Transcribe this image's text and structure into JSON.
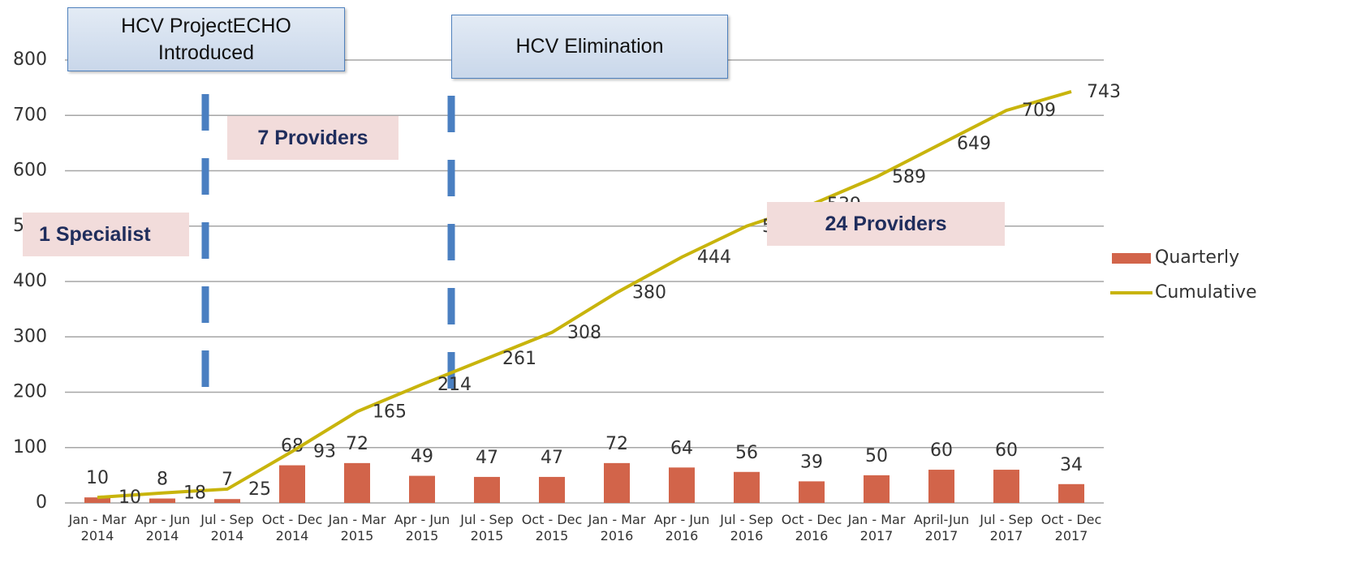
{
  "chart_data": {
    "type": "bar_line",
    "categories": [
      "Jan - Mar 2014",
      "Apr - Jun 2014",
      "Jul - Sep 2014",
      "Oct - Dec 2014",
      "Jan - Mar 2015",
      "Apr - Jun 2015",
      "Jul - Sep 2015",
      "Oct - Dec 2015",
      "Jan - Mar 2016",
      "Apr - Jun 2016",
      "Jul - Sep 2016",
      "Oct - Dec 2016",
      "Jan - Mar 2017",
      "April-Jun 2017",
      "Jul - Sep 2017",
      "Oct - Dec 2017"
    ],
    "series": [
      {
        "name": "Quarterly",
        "type": "bar",
        "color": "#d2644a",
        "values": [
          10,
          8,
          7,
          68,
          72,
          49,
          47,
          47,
          72,
          64,
          56,
          39,
          50,
          60,
          60,
          34
        ]
      },
      {
        "name": "Cumulative",
        "type": "line",
        "color": "#c8b40c",
        "values": [
          10,
          18,
          25,
          93,
          165,
          214,
          261,
          308,
          380,
          444,
          500,
          539,
          589,
          649,
          709,
          743
        ]
      }
    ],
    "ylim": [
      0,
      800
    ],
    "yticks": [
      0,
      100,
      200,
      300,
      400,
      500,
      600,
      700,
      800
    ],
    "grid": true,
    "legend": "right",
    "annotations": [
      {
        "text": "HCV ProjectECHO Introduced"
      },
      {
        "text": "HCV Elimination"
      },
      {
        "text": "7 Providers"
      },
      {
        "text": "1 Specialist"
      },
      {
        "text": "24 Providers"
      }
    ]
  }
}
